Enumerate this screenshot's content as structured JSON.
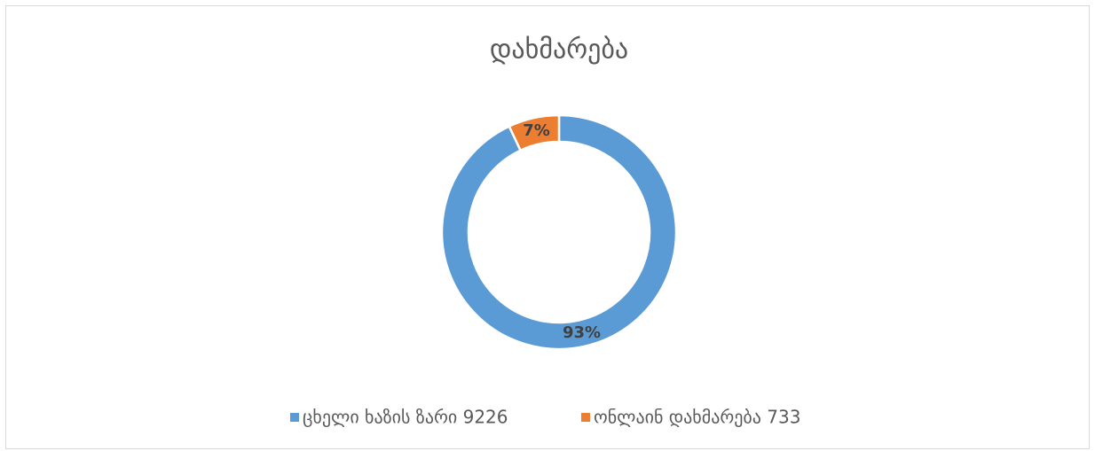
{
  "chart_data": {
    "type": "donut",
    "title": "დახმარება",
    "categories": [
      "ცხელი ხაზის ზარი 9226",
      "ონლაინ დახმარება  733"
    ],
    "values": [
      93,
      7
    ],
    "value_labels": [
      "93%",
      "7%"
    ],
    "colors": [
      "#5b9bd5",
      "#ed7d31"
    ],
    "legend": "bottom"
  }
}
